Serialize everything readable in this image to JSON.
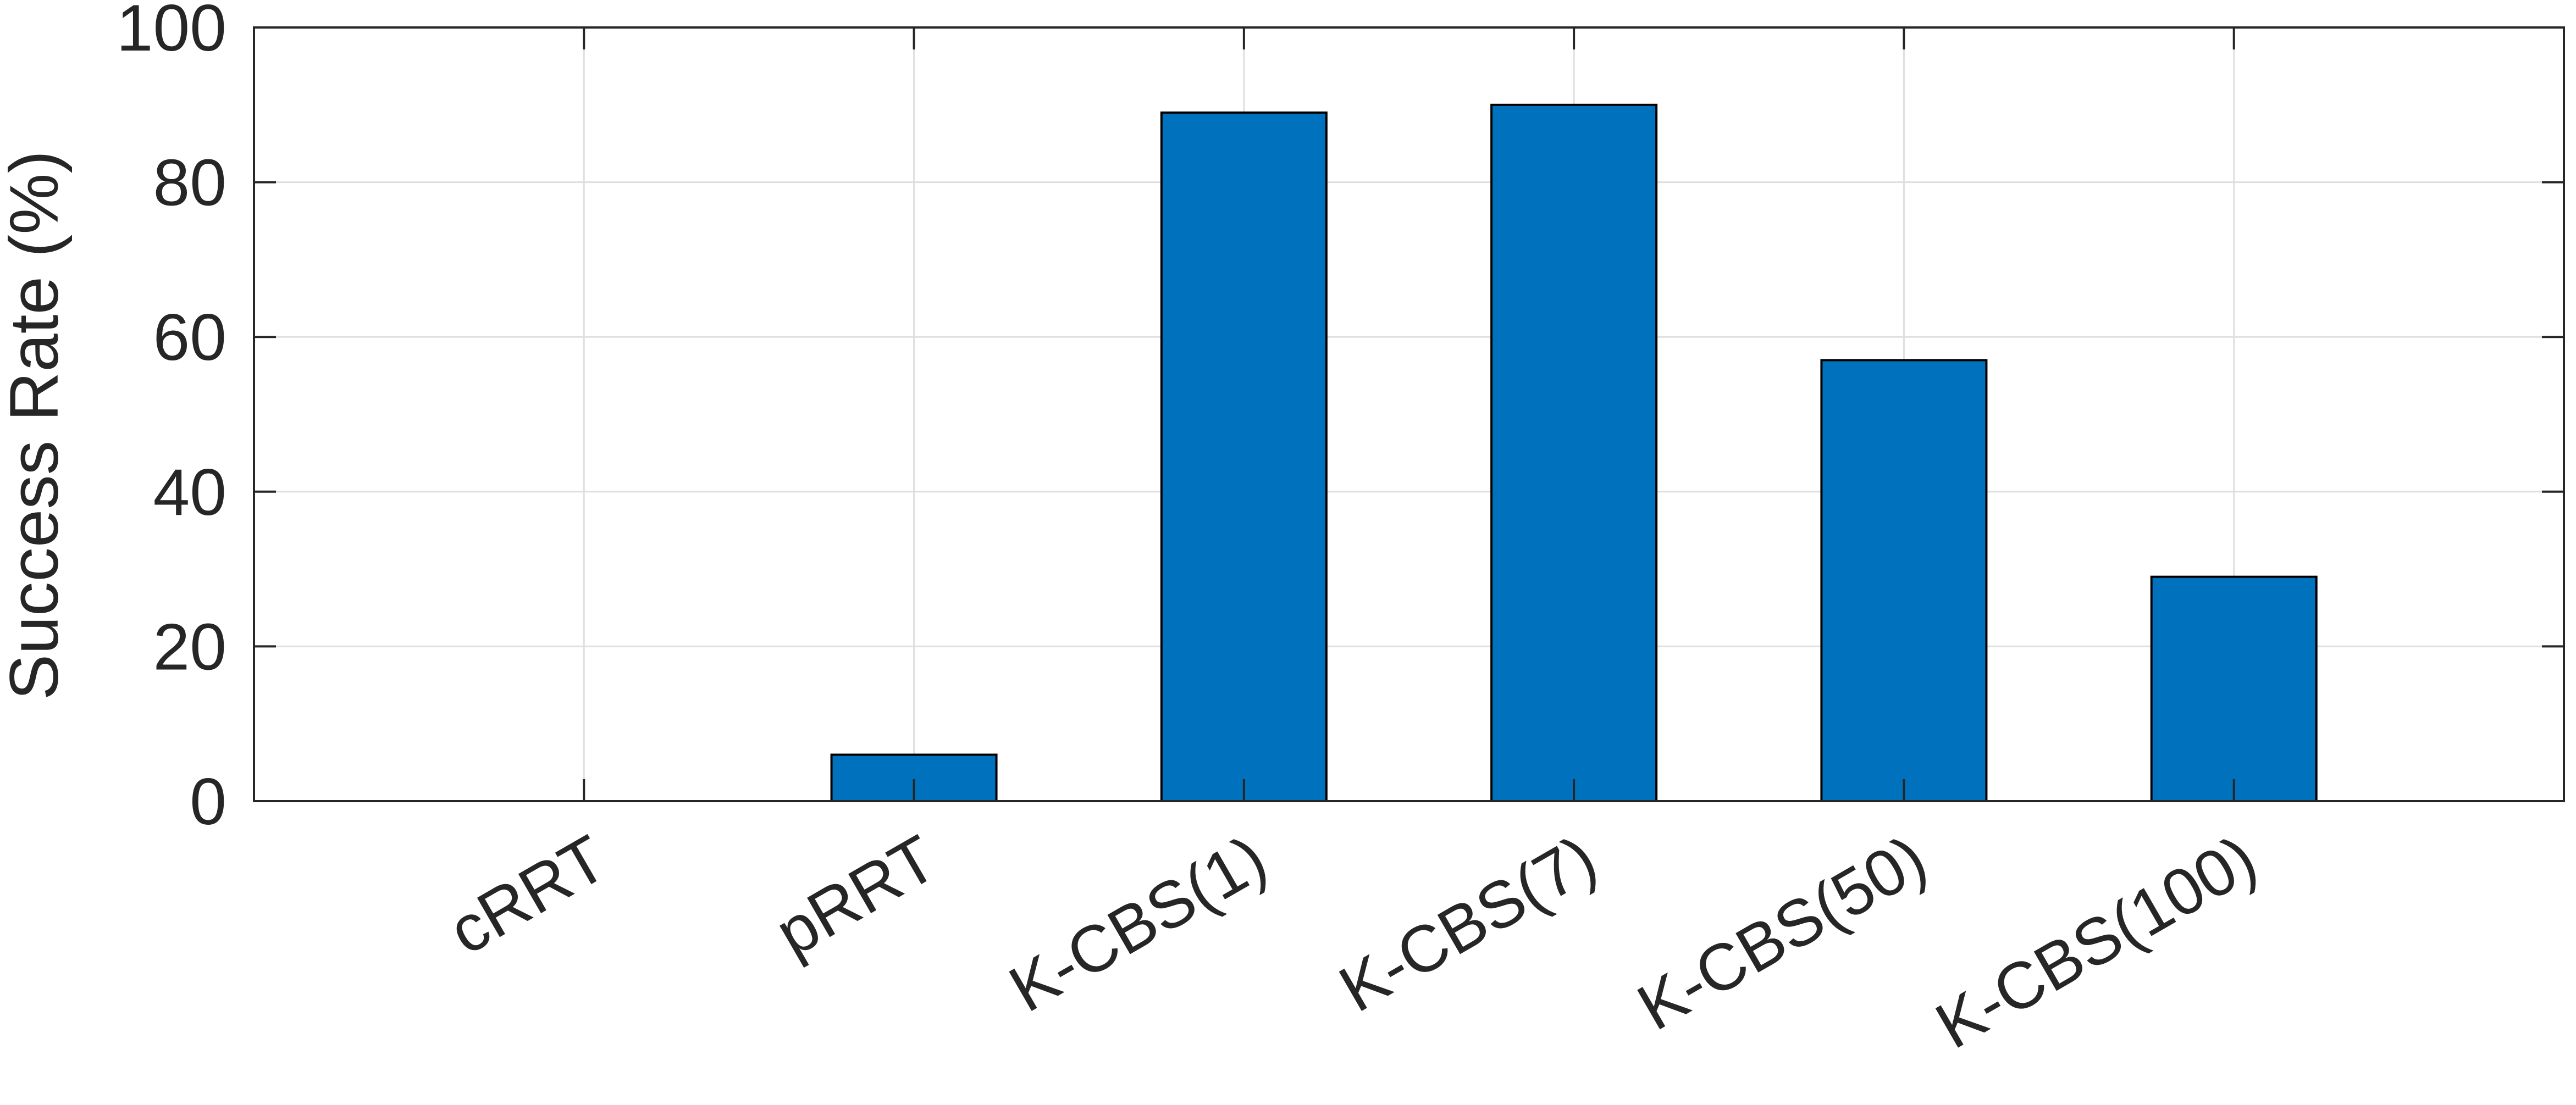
{
  "chart_data": {
    "type": "bar",
    "title": "",
    "xlabel": "",
    "ylabel": "Success Rate (%)",
    "categories": [
      "cRRT",
      "pRRT",
      "K-CBS(1)",
      "K-CBS(7)",
      "K-CBS(50)",
      "K-CBS(100)"
    ],
    "values": [
      0,
      6,
      89,
      90,
      57,
      29
    ],
    "ylim": [
      0,
      100
    ],
    "yticks": [
      "0",
      "20",
      "40",
      "60",
      "80",
      "100"
    ],
    "grid": true,
    "bar_color": "#0072BD",
    "legend": "none"
  }
}
